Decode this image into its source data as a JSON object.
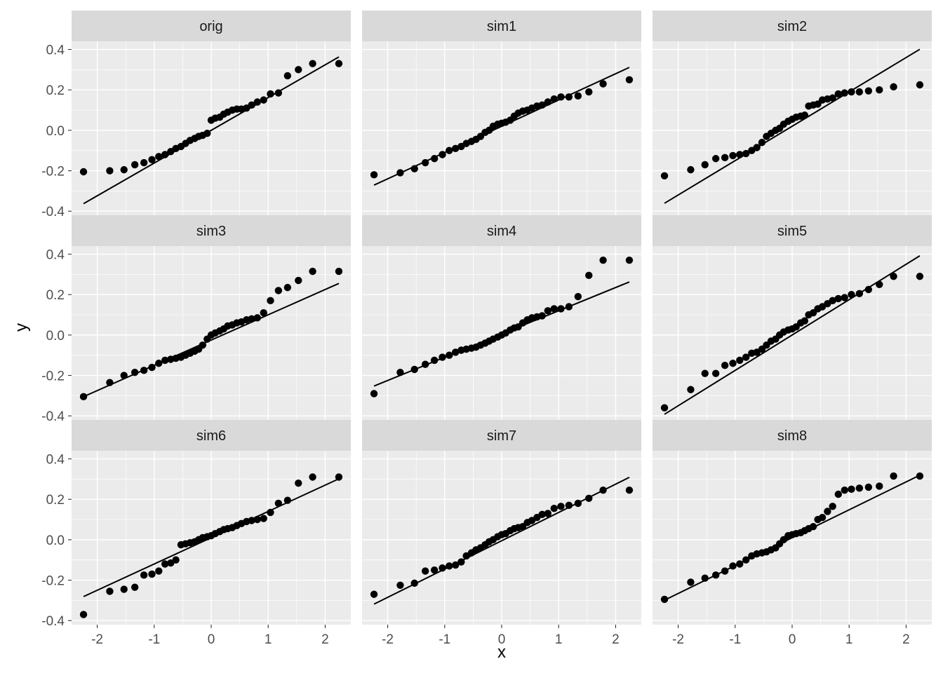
{
  "chart_data": {
    "type": "scatter",
    "layout": "facet-grid 3x3",
    "xlabel": "x",
    "ylabel": "y",
    "xlim": [
      -2.45,
      2.45
    ],
    "ylim": [
      -0.42,
      0.44
    ],
    "x_ticks": [
      -2,
      -1,
      0,
      1,
      2
    ],
    "x_tick_labels": [
      "-2",
      "-1",
      "0",
      "1",
      "2"
    ],
    "y_ticks": [
      -0.4,
      -0.2,
      0.0,
      0.2,
      0.4
    ],
    "y_tick_labels": [
      "-0.4",
      "-0.2",
      "0.0",
      "0.2",
      "0.4"
    ],
    "grid": true,
    "x_quantiles": [
      -2.24,
      -1.78,
      -1.53,
      -1.34,
      -1.18,
      -1.04,
      -0.92,
      -0.81,
      -0.71,
      -0.62,
      -0.53,
      -0.45,
      -0.37,
      -0.29,
      -0.22,
      -0.15,
      -0.07,
      0.0,
      0.07,
      0.15,
      0.22,
      0.29,
      0.37,
      0.45,
      0.53,
      0.62,
      0.71,
      0.81,
      0.92,
      1.04,
      1.18,
      1.34,
      1.53,
      1.78,
      2.24
    ],
    "panels": [
      {
        "label": "orig",
        "line": [
          0.0,
          0.162
        ],
        "values": [
          -0.205,
          -0.2,
          -0.195,
          -0.17,
          -0.16,
          -0.145,
          -0.13,
          -0.12,
          -0.105,
          -0.09,
          -0.08,
          -0.065,
          -0.05,
          -0.04,
          -0.03,
          -0.025,
          -0.015,
          0.05,
          0.06,
          0.065,
          0.08,
          0.09,
          0.1,
          0.105,
          0.105,
          0.11,
          0.125,
          0.14,
          0.15,
          0.18,
          0.185,
          0.27,
          0.3,
          0.33,
          0.33
        ]
      },
      {
        "label": "sim1",
        "line": [
          0.02,
          0.13
        ],
        "values": [
          -0.22,
          -0.21,
          -0.19,
          -0.16,
          -0.14,
          -0.12,
          -0.1,
          -0.09,
          -0.08,
          -0.065,
          -0.055,
          -0.045,
          -0.03,
          -0.01,
          0.0,
          0.02,
          0.03,
          0.035,
          0.04,
          0.05,
          0.07,
          0.085,
          0.095,
          0.1,
          0.11,
          0.12,
          0.125,
          0.14,
          0.155,
          0.165,
          0.165,
          0.17,
          0.19,
          0.23,
          0.25
        ]
      },
      {
        "label": "sim2",
        "line": [
          0.02,
          0.17
        ],
        "values": [
          -0.225,
          -0.195,
          -0.17,
          -0.14,
          -0.135,
          -0.125,
          -0.12,
          -0.115,
          -0.1,
          -0.085,
          -0.06,
          -0.03,
          -0.015,
          0.0,
          0.01,
          0.03,
          0.045,
          0.055,
          0.065,
          0.07,
          0.075,
          0.12,
          0.125,
          0.13,
          0.15,
          0.155,
          0.16,
          0.18,
          0.185,
          0.19,
          0.19,
          0.195,
          0.2,
          0.215,
          0.225
        ]
      },
      {
        "label": "sim3",
        "line": [
          -0.025,
          0.125
        ],
        "values": [
          -0.305,
          -0.235,
          -0.2,
          -0.185,
          -0.175,
          -0.16,
          -0.14,
          -0.125,
          -0.12,
          -0.115,
          -0.11,
          -0.1,
          -0.09,
          -0.08,
          -0.07,
          -0.05,
          -0.02,
          0.0,
          0.01,
          0.02,
          0.03,
          0.045,
          0.05,
          0.06,
          0.065,
          0.075,
          0.08,
          0.085,
          0.11,
          0.17,
          0.22,
          0.235,
          0.27,
          0.315,
          0.315
        ]
      },
      {
        "label": "sim4",
        "line": [
          0.005,
          0.115
        ],
        "values": [
          -0.29,
          -0.185,
          -0.17,
          -0.145,
          -0.125,
          -0.11,
          -0.1,
          -0.085,
          -0.075,
          -0.07,
          -0.065,
          -0.06,
          -0.05,
          -0.04,
          -0.03,
          -0.02,
          -0.01,
          0.0,
          0.01,
          0.025,
          0.035,
          0.04,
          0.06,
          0.075,
          0.085,
          0.09,
          0.095,
          0.12,
          0.13,
          0.13,
          0.14,
          0.19,
          0.295,
          0.37,
          0.37
        ]
      },
      {
        "label": "sim5",
        "line": [
          0.0,
          0.175
        ],
        "values": [
          -0.36,
          -0.27,
          -0.19,
          -0.19,
          -0.15,
          -0.14,
          -0.125,
          -0.11,
          -0.09,
          -0.085,
          -0.07,
          -0.05,
          -0.03,
          -0.02,
          0.0,
          0.015,
          0.025,
          0.03,
          0.04,
          0.06,
          0.07,
          0.1,
          0.11,
          0.13,
          0.14,
          0.155,
          0.17,
          0.18,
          0.185,
          0.2,
          0.205,
          0.225,
          0.25,
          0.29,
          0.29
        ]
      },
      {
        "label": "sim6",
        "line": [
          0.01,
          0.13
        ],
        "values": [
          -0.37,
          -0.255,
          -0.245,
          -0.235,
          -0.175,
          -0.17,
          -0.155,
          -0.12,
          -0.115,
          -0.1,
          -0.025,
          -0.02,
          -0.015,
          -0.01,
          0.0,
          0.01,
          0.015,
          0.02,
          0.03,
          0.04,
          0.05,
          0.055,
          0.06,
          0.07,
          0.08,
          0.09,
          0.095,
          0.1,
          0.105,
          0.135,
          0.18,
          0.195,
          0.28,
          0.31,
          0.31
        ]
      },
      {
        "label": "sim7",
        "line": [
          -0.005,
          0.14
        ],
        "values": [
          -0.27,
          -0.225,
          -0.215,
          -0.155,
          -0.15,
          -0.14,
          -0.13,
          -0.125,
          -0.11,
          -0.08,
          -0.065,
          -0.05,
          -0.04,
          -0.025,
          -0.01,
          0.0,
          0.015,
          0.025,
          0.03,
          0.045,
          0.055,
          0.06,
          0.065,
          0.085,
          0.095,
          0.11,
          0.125,
          0.13,
          0.155,
          0.165,
          0.17,
          0.18,
          0.205,
          0.245,
          0.245
        ]
      },
      {
        "label": "sim8",
        "line": [
          0.01,
          0.138
        ],
        "values": [
          -0.295,
          -0.21,
          -0.19,
          -0.175,
          -0.155,
          -0.13,
          -0.12,
          -0.1,
          -0.08,
          -0.07,
          -0.065,
          -0.06,
          -0.05,
          -0.04,
          -0.02,
          0.0,
          0.02,
          0.025,
          0.03,
          0.035,
          0.045,
          0.055,
          0.065,
          0.1,
          0.11,
          0.14,
          0.165,
          0.225,
          0.245,
          0.25,
          0.255,
          0.26,
          0.265,
          0.315,
          0.315
        ]
      }
    ]
  }
}
